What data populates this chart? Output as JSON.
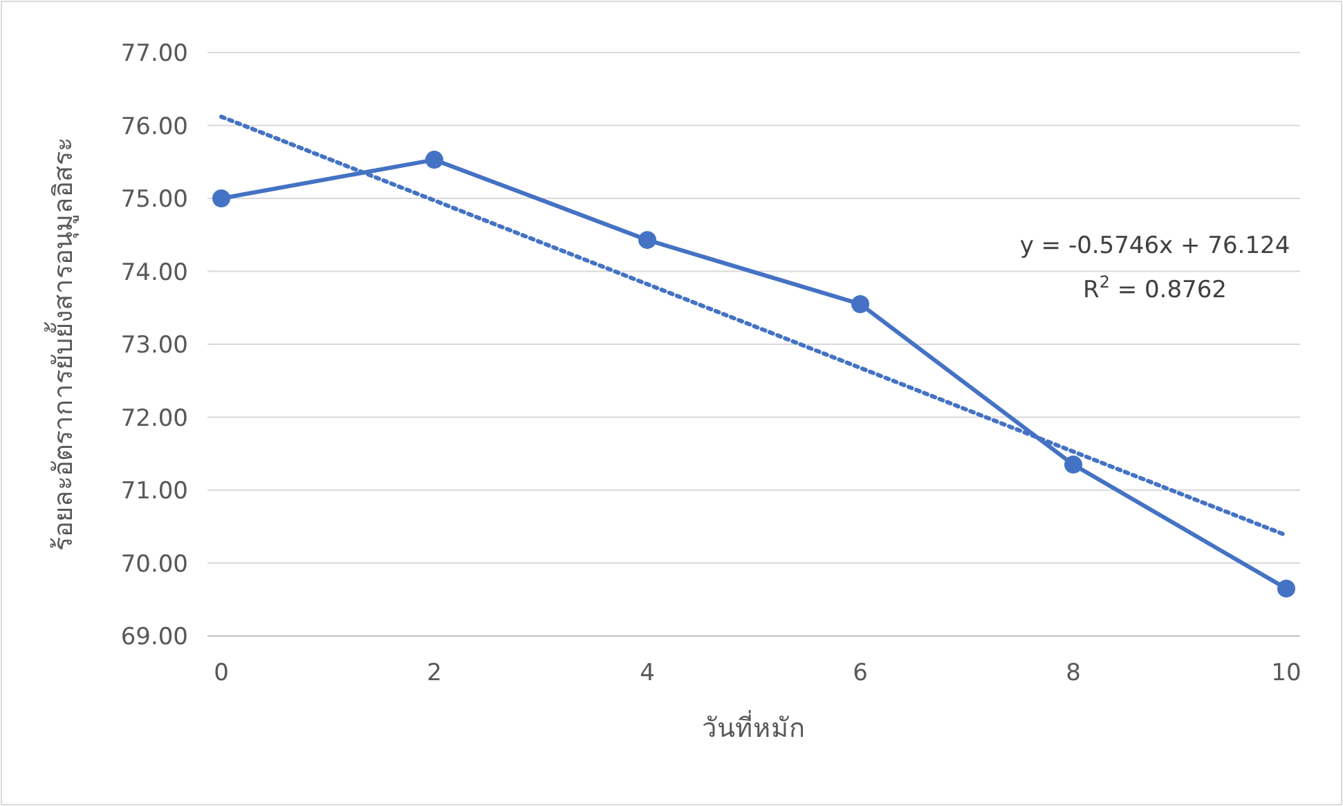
{
  "chart_data": {
    "type": "line",
    "xlabel": "วันที่หมัก",
    "ylabel": "ร้อยละอัตราการยับยั้งสารอนุมูลอิสระ",
    "xlim": [
      -0.13,
      10.13
    ],
    "xticks": [
      0,
      2,
      4,
      6,
      8,
      10
    ],
    "ylim": [
      69,
      77
    ],
    "yticks": [
      {
        "value": 69,
        "label": "69.00"
      },
      {
        "value": 70,
        "label": "70.00"
      },
      {
        "value": 71,
        "label": "71.00"
      },
      {
        "value": 72,
        "label": "72.00"
      },
      {
        "value": 73,
        "label": "73.00"
      },
      {
        "value": 74,
        "label": "74.00"
      },
      {
        "value": 75,
        "label": "75.00"
      },
      {
        "value": 76,
        "label": "76.00"
      },
      {
        "value": 77,
        "label": "77.00"
      }
    ],
    "grid": "y",
    "series": [
      {
        "type": "line",
        "color": "#4472c4",
        "marker": "circle",
        "line_style": "solid",
        "x": [
          0,
          2,
          4,
          6,
          8,
          10
        ],
        "values": [
          75.0,
          75.53,
          74.43,
          73.55,
          71.35,
          69.65
        ]
      },
      {
        "type": "line",
        "color": "#4472c4",
        "marker": "none",
        "line_style": "dotted",
        "x": [
          0,
          10
        ],
        "values": [
          76.12,
          70.38
        ]
      }
    ],
    "annotations": [
      "y = -0.5746x + 76.124",
      "R$^{2}$ = 0.8762"
    ]
  }
}
